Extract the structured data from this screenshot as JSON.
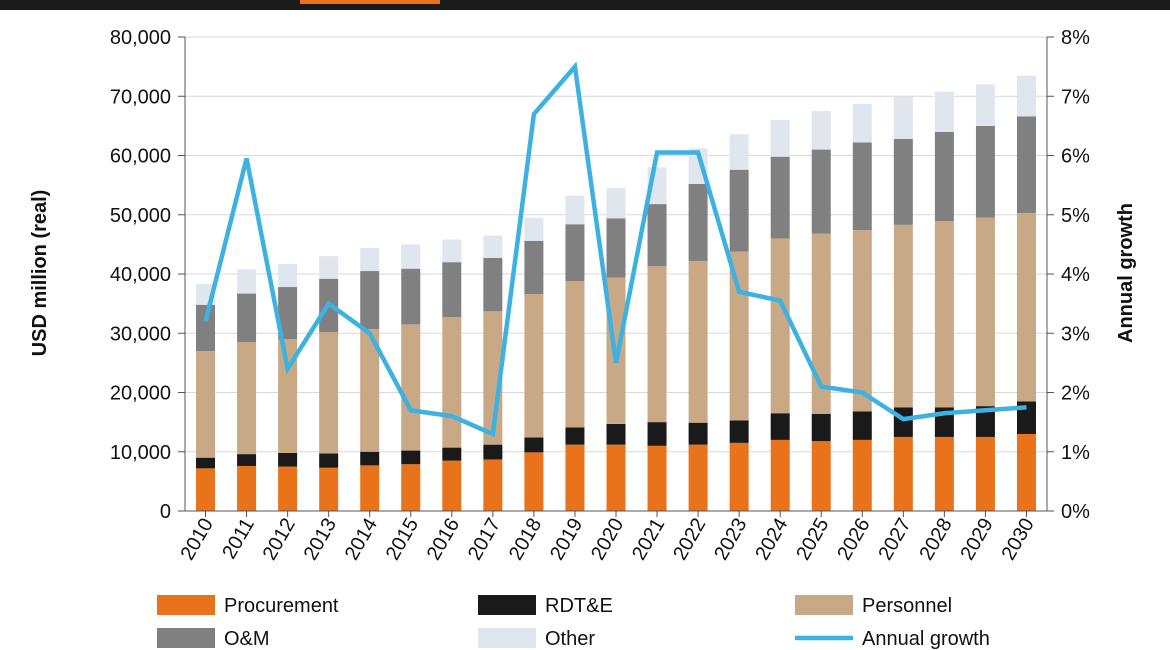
{
  "chart_data": {
    "type": "bar",
    "stacked": true,
    "categories": [
      "2010",
      "2011",
      "2012",
      "2013",
      "2014",
      "2015",
      "2016",
      "2017",
      "2018",
      "2019",
      "2020",
      "2021",
      "2022",
      "2023",
      "2024",
      "2025",
      "2026",
      "2027",
      "2028",
      "2029",
      "2030"
    ],
    "ylabel": "USD million (real)",
    "y2label": "Annual growth",
    "ylim": [
      0,
      80000
    ],
    "y2lim": [
      0,
      8
    ],
    "yticks": [
      "0",
      "10,000",
      "20,000",
      "30,000",
      "40,000",
      "50,000",
      "60,000",
      "70,000",
      "80,000"
    ],
    "y2ticks": [
      "0%",
      "1%",
      "2%",
      "3%",
      "4%",
      "5%",
      "6%",
      "7%",
      "8%"
    ],
    "grid": true,
    "legend_position": "bottom",
    "series": [
      {
        "name": "Procurement",
        "color": "#e8731a",
        "values": [
          7200,
          7600,
          7500,
          7300,
          7700,
          7900,
          8500,
          8700,
          9900,
          11200,
          11200,
          11000,
          11200,
          11500,
          12000,
          11800,
          12000,
          12500,
          12500,
          12500,
          13000
        ]
      },
      {
        "name": "RDT&E",
        "color": "#1a1a1a",
        "values": [
          1800,
          2000,
          2300,
          2400,
          2300,
          2300,
          2200,
          2500,
          2500,
          2900,
          3500,
          4000,
          3700,
          3800,
          4500,
          4600,
          4800,
          5000,
          5000,
          5200,
          5500
        ]
      },
      {
        "name": "Personnel",
        "color": "#c9a886",
        "values": [
          18000,
          18900,
          19200,
          20500,
          20700,
          21300,
          22000,
          22500,
          24200,
          24700,
          24700,
          26300,
          27300,
          28500,
          29500,
          30400,
          30600,
          30800,
          31400,
          31800,
          31800
        ]
      },
      {
        "name": "O&M",
        "color": "#808080",
        "values": [
          7800,
          8200,
          8800,
          9000,
          9800,
          9400,
          9300,
          9000,
          9000,
          9600,
          10000,
          10500,
          13000,
          13800,
          13800,
          14200,
          14800,
          14500,
          15100,
          15500,
          16300
        ]
      },
      {
        "name": "Other",
        "color": "#dfe6ee",
        "values": [
          3500,
          4100,
          3900,
          3800,
          3900,
          4100,
          3800,
          3800,
          3900,
          4800,
          5100,
          6200,
          6000,
          6000,
          6200,
          6500,
          6500,
          7200,
          6800,
          7000,
          6900
        ]
      }
    ],
    "line": {
      "name": "Annual growth",
      "color": "#3db1e0",
      "axis": "right",
      "values": [
        3.2,
        5.95,
        2.4,
        3.5,
        3.0,
        1.7,
        1.6,
        1.3,
        6.7,
        7.5,
        2.5,
        6.05,
        6.05,
        3.7,
        3.55,
        2.1,
        2.0,
        1.55,
        1.65,
        1.7,
        1.75
      ]
    }
  }
}
